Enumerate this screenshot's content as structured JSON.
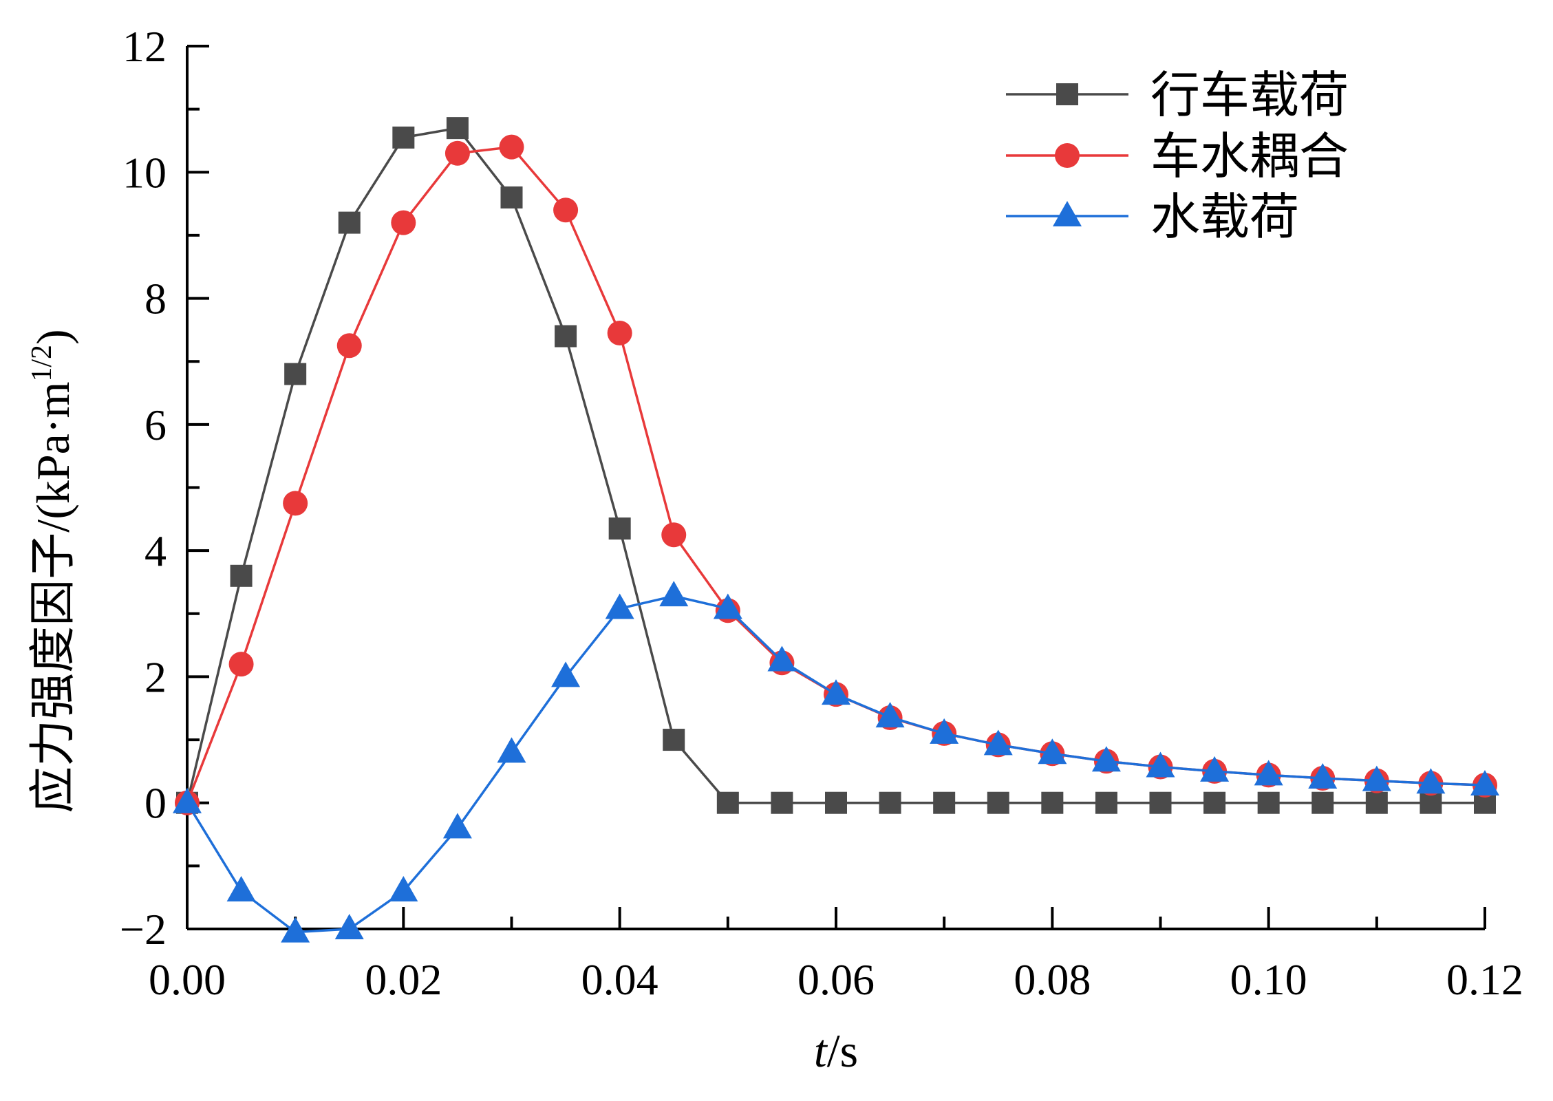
{
  "chart_data": {
    "type": "line",
    "xlabel": {
      "italic": "t",
      "rest": "/s"
    },
    "ylabel": {
      "main": "应力强度因子/(kPa·m",
      "sup": "1/2",
      "end": ")"
    },
    "xlim": [
      0,
      0.12
    ],
    "ylim": [
      -2,
      12
    ],
    "x_ticks": [
      0.0,
      0.02,
      0.04,
      0.06,
      0.08,
      0.1,
      0.12
    ],
    "x_tick_labels": [
      "0.00",
      "0.02",
      "0.04",
      "0.06",
      "0.08",
      "0.10",
      "0.12"
    ],
    "y_ticks": [
      -2,
      0,
      2,
      4,
      6,
      8,
      10,
      12
    ],
    "y_tick_labels": [
      "−2",
      "0",
      "2",
      "4",
      "6",
      "8",
      "10",
      "12"
    ],
    "grid": false,
    "legend_position": "top-right",
    "x": [
      0,
      0.005,
      0.01,
      0.015,
      0.02,
      0.025,
      0.03,
      0.035,
      0.04,
      0.045,
      0.05,
      0.055,
      0.06,
      0.065,
      0.07,
      0.075,
      0.08,
      0.085,
      0.09,
      0.095,
      0.1,
      0.105,
      0.11,
      0.115,
      0.12
    ],
    "series": [
      {
        "name": "行车载荷",
        "color": "#4a4a4a",
        "marker": "square",
        "values": [
          0,
          3.6,
          6.8,
          9.2,
          10.55,
          10.7,
          9.6,
          7.4,
          4.35,
          1.0,
          0,
          0,
          0,
          0,
          0,
          0,
          0,
          0,
          0,
          0,
          0,
          0,
          0,
          0,
          0
        ]
      },
      {
        "name": "车水耦合",
        "color": "#e8393a",
        "marker": "circle",
        "values": [
          0,
          2.2,
          4.75,
          7.25,
          9.2,
          10.3,
          10.4,
          9.4,
          7.45,
          4.25,
          3.05,
          2.22,
          1.72,
          1.35,
          1.1,
          0.92,
          0.78,
          0.66,
          0.57,
          0.5,
          0.44,
          0.39,
          0.35,
          0.31,
          0.28
        ]
      },
      {
        "name": "水载荷",
        "color": "#1e6fd9",
        "marker": "triangle",
        "values": [
          0,
          -1.4,
          -2.05,
          -2.0,
          -1.4,
          -0.4,
          0.8,
          2.0,
          3.08,
          3.28,
          3.08,
          2.25,
          1.72,
          1.36,
          1.1,
          0.92,
          0.78,
          0.66,
          0.57,
          0.5,
          0.44,
          0.39,
          0.35,
          0.31,
          0.28
        ]
      }
    ]
  }
}
